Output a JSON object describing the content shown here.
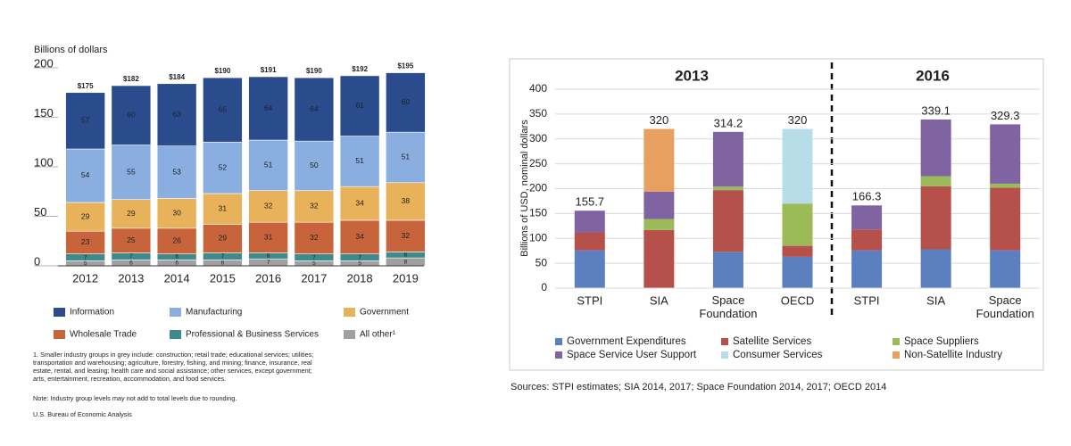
{
  "chart_data": [
    {
      "type": "bar",
      "stacked": true,
      "ylabel": "Billions of dollars",
      "categories": [
        "2012",
        "2013",
        "2014",
        "2015",
        "2016",
        "2017",
        "2018",
        "2019"
      ],
      "series": [
        {
          "name": "Information",
          "color": "#2b4c8c",
          "values": [
            57,
            60,
            63,
            65,
            64,
            64,
            61,
            60
          ]
        },
        {
          "name": "Manufacturing",
          "color": "#8aaee0",
          "values": [
            54,
            55,
            53,
            52,
            51,
            50,
            51,
            51
          ]
        },
        {
          "name": "Government",
          "color": "#e8b25a",
          "values": [
            29,
            29,
            30,
            31,
            32,
            32,
            34,
            38
          ]
        },
        {
          "name": "Wholesale Trade",
          "color": "#c8643c",
          "values": [
            23,
            25,
            26,
            29,
            31,
            32,
            34,
            32
          ]
        },
        {
          "name": "Professional & Business Services",
          "color": "#3f8a8c",
          "values": [
            7,
            7,
            6,
            7,
            6,
            7,
            7,
            6
          ]
        },
        {
          "name": "All other¹",
          "color": "#a0a0a0",
          "values": [
            5,
            6,
            6,
            6,
            7,
            5,
            5,
            8
          ]
        }
      ],
      "totals": [
        175,
        182,
        184,
        190,
        191,
        190,
        192,
        195
      ],
      "totals_labels": [
        "$175",
        "$182",
        "$184",
        "$190",
        "$191",
        "$190",
        "$192",
        "$195"
      ],
      "ylim": [
        0,
        200
      ],
      "yticks": [
        0,
        50,
        100,
        150,
        200
      ],
      "grid": false,
      "notes": [
        "1. Smaller industry groups in grey include: construction; retail trade; educational services; utilities;",
        "transportation and warehousing; agriculture, forestry, fishing, and mining; finance, insurance, real",
        "estate, rental, and leasing; health care and social assistance; other services, except government;",
        "arts, entertainment, recreation, accommodation, and food services.",
        "Note: Industry group levels may not add to total levels due to rounding.",
        "U.S. Bureau of Economic Analysis"
      ]
    },
    {
      "type": "bar",
      "stacked": true,
      "ylabel": "Billions of USD, nominal dollars",
      "group_labels": [
        "2013",
        "2016"
      ],
      "categories": [
        "STPI",
        "SIA",
        "Space Foundation",
        "OECD",
        "STPI",
        "SIA",
        "Space Foundation"
      ],
      "series": [
        {
          "name": "Government Expenditures",
          "color": "#5b7fbf",
          "values": [
            76,
            0,
            73,
            63,
            76,
            78,
            76
          ]
        },
        {
          "name": "Satellite Services",
          "color": "#b5504a",
          "values": [
            36,
            117,
            124,
            22,
            42,
            127,
            126
          ]
        },
        {
          "name": "Space Suppliers",
          "color": "#9bbb59",
          "values": [
            0,
            22,
            7,
            85,
            0,
            20,
            8
          ]
        },
        {
          "name": "Space Service User Support",
          "color": "#8064a2",
          "values": [
            43.7,
            55,
            110.2,
            0,
            48.3,
            114.1,
            119.3
          ]
        },
        {
          "name": "Consumer Services",
          "color": "#b7dde8",
          "values": [
            0,
            0,
            0,
            150,
            0,
            0,
            0
          ]
        },
        {
          "name": "Non-Satellite Industry",
          "color": "#e8a060",
          "values": [
            0,
            126,
            0,
            0,
            0,
            0,
            0
          ]
        }
      ],
      "totals": [
        155.7,
        320,
        314.2,
        320,
        166.3,
        339.1,
        329.3
      ],
      "ylim": [
        0,
        400
      ],
      "yticks": [
        0,
        50,
        100,
        150,
        200,
        250,
        300,
        350,
        400
      ],
      "grid": true,
      "source": "Sources: STPI estimates; SIA 2014, 2017; Space Foundation 2014, 2017; OECD 2014"
    }
  ]
}
